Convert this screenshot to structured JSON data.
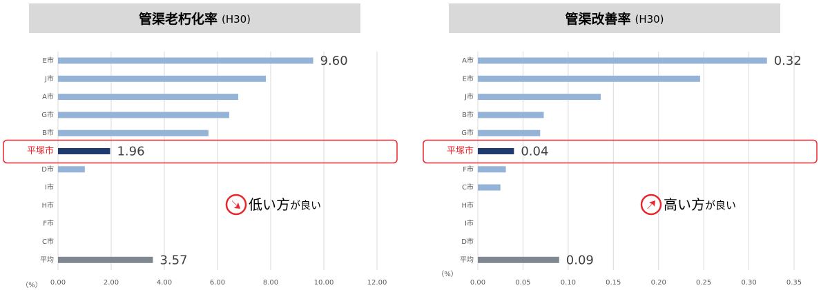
{
  "chart_data": [
    {
      "type": "bar",
      "orientation": "horizontal",
      "title": "管渠老朽化率",
      "subtitle": "(H30)",
      "unit": "（%）",
      "categories": [
        "E市",
        "J市",
        "A市",
        "G市",
        "B市",
        "平塚市",
        "D市",
        "I市",
        "H市",
        "F市",
        "C市",
        "平均"
      ],
      "values": [
        9.6,
        7.82,
        6.78,
        6.44,
        5.66,
        1.96,
        1.01,
        0,
        0,
        0,
        0,
        3.57
      ],
      "value_labels": [
        "9.60",
        null,
        null,
        null,
        null,
        "1.96",
        null,
        null,
        null,
        null,
        null,
        "3.57"
      ],
      "colors": [
        "#95b3d7",
        "#95b3d7",
        "#95b3d7",
        "#95b3d7",
        "#95b3d7",
        "#1f3b6e",
        "#95b3d7",
        "#95b3d7",
        "#95b3d7",
        "#95b3d7",
        "#95b3d7",
        "#7f8790"
      ],
      "highlight_index": 5,
      "highlight_color": "#e8262c",
      "xlim": [
        0,
        12
      ],
      "xticks": [
        {
          "value": 0,
          "label": "0.00"
        },
        {
          "value": 2,
          "label": "2.00"
        },
        {
          "value": 4,
          "label": "4.00"
        },
        {
          "value": 6,
          "label": "6.00"
        },
        {
          "value": 8,
          "label": "8.00"
        },
        {
          "value": 10,
          "label": "10.00"
        },
        {
          "value": 12,
          "label": "12.00"
        }
      ],
      "grid": true,
      "annotation": {
        "main": "低い方",
        "small": "が良い",
        "direction": "down"
      }
    },
    {
      "type": "bar",
      "orientation": "horizontal",
      "title": "管渠改善率",
      "subtitle": "(H30)",
      "unit": "（%）",
      "categories": [
        "A市",
        "E市",
        "J市",
        "B市",
        "G市",
        "平塚市",
        "F市",
        "C市",
        "H市",
        "I市",
        "D市",
        "平均"
      ],
      "values": [
        0.32,
        0.246,
        0.136,
        0.073,
        0.069,
        0.04,
        0.031,
        0.025,
        0,
        0,
        0,
        0.09
      ],
      "value_labels": [
        "0.32",
        null,
        null,
        null,
        null,
        "0.04",
        null,
        null,
        null,
        null,
        null,
        "0.09"
      ],
      "colors": [
        "#95b3d7",
        "#95b3d7",
        "#95b3d7",
        "#95b3d7",
        "#95b3d7",
        "#1f3b6e",
        "#95b3d7",
        "#95b3d7",
        "#95b3d7",
        "#95b3d7",
        "#95b3d7",
        "#7f8790"
      ],
      "highlight_index": 5,
      "highlight_color": "#e8262c",
      "xlim": [
        0,
        0.35
      ],
      "xticks": [
        {
          "value": 0,
          "label": "0.00"
        },
        {
          "value": 0.05,
          "label": "0.05"
        },
        {
          "value": 0.1,
          "label": "0.10"
        },
        {
          "value": 0.15,
          "label": "0.15"
        },
        {
          "value": 0.2,
          "label": "0.20"
        },
        {
          "value": 0.25,
          "label": "0.25"
        },
        {
          "value": 0.3,
          "label": "0.30"
        },
        {
          "value": 0.35,
          "label": "0.35"
        }
      ],
      "grid": true,
      "annotation": {
        "main": "高い方",
        "small": "が良い",
        "direction": "up"
      }
    }
  ]
}
